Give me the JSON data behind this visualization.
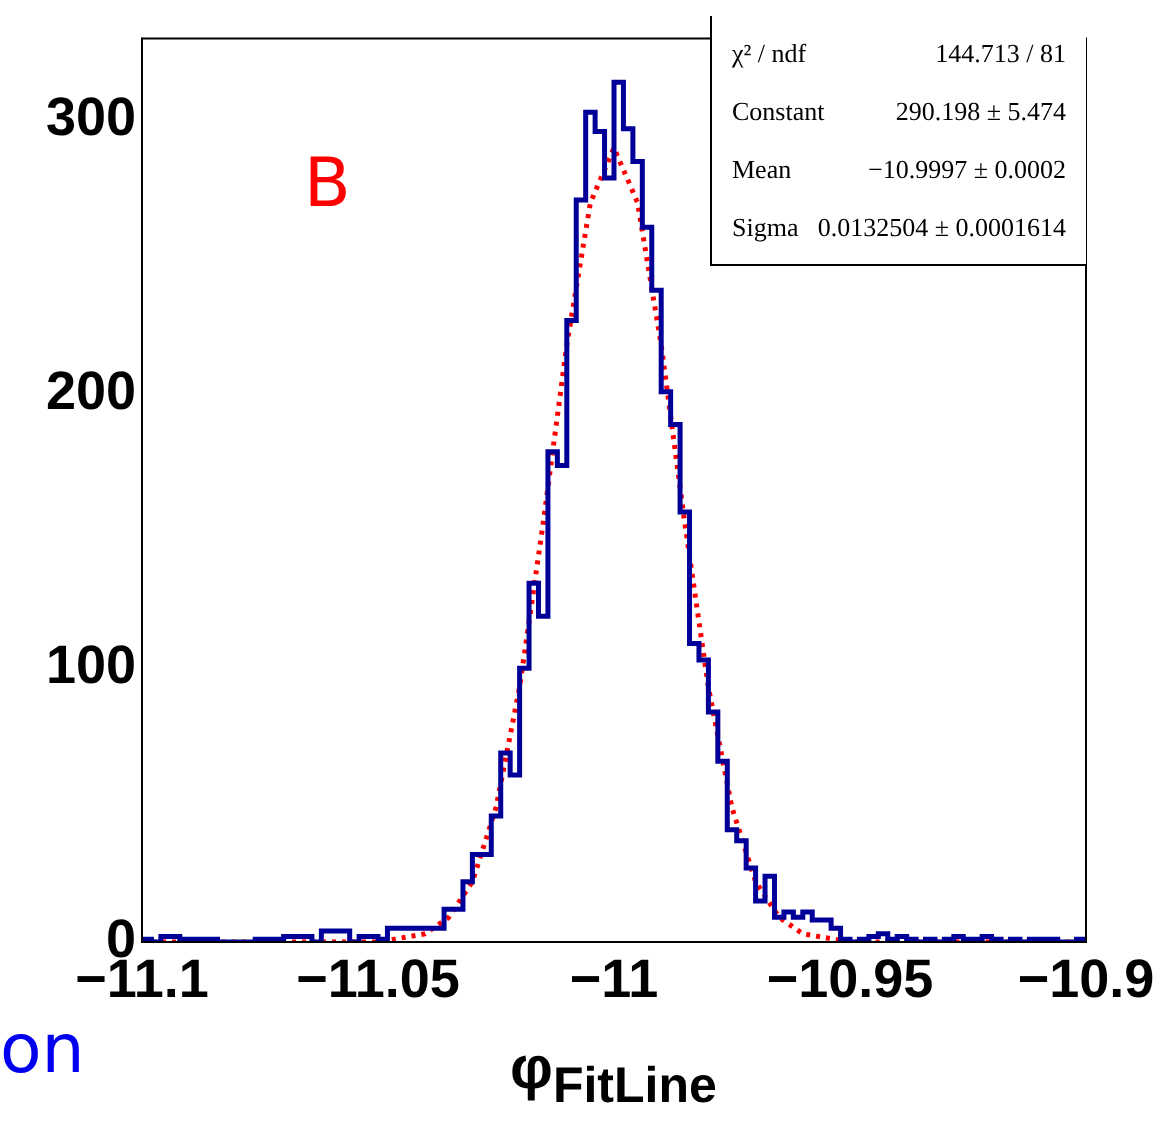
{
  "chart_data": {
    "type": "histogram",
    "xlabel": "φ$_{FitLine}$",
    "bins": [
      -11.1,
      -11.098,
      -11.096,
      -11.094,
      -11.092,
      -11.09,
      -11.088,
      -11.086,
      -11.084,
      -11.082,
      -11.08,
      -11.078,
      -11.076,
      -11.074,
      -11.072,
      -11.07,
      -11.068,
      -11.066,
      -11.064,
      -11.062,
      -11.06,
      -11.058,
      -11.056,
      -11.054,
      -11.052,
      -11.05,
      -11.048,
      -11.046,
      -11.044,
      -11.042,
      -11.04,
      -11.038,
      -11.036,
      -11.034,
      -11.032,
      -11.03,
      -11.028,
      -11.026,
      -11.024,
      -11.022,
      -11.02,
      -11.018,
      -11.016,
      -11.014,
      -11.012,
      -11.01,
      -11.008,
      -11.006,
      -11.004,
      -11.002,
      -11,
      -10.998,
      -10.996,
      -10.994,
      -10.992,
      -10.99,
      -10.988,
      -10.986,
      -10.984,
      -10.982,
      -10.98,
      -10.978,
      -10.976,
      -10.974,
      -10.972,
      -10.97,
      -10.968,
      -10.966,
      -10.964,
      -10.962,
      -10.96,
      -10.958,
      -10.956,
      -10.954,
      -10.952,
      -10.95,
      -10.948,
      -10.946,
      -10.944,
      -10.942,
      -10.94,
      -10.938,
      -10.936,
      -10.934,
      -10.932,
      -10.93,
      -10.928,
      -10.926,
      -10.924,
      -10.922,
      -10.92,
      -10.918,
      -10.916,
      -10.914,
      -10.912,
      -10.91,
      -10.908,
      -10.906,
      -10.904,
      -10.902,
      -10.9
    ],
    "values": [
      1,
      0,
      2,
      2,
      1,
      1,
      1,
      1,
      0,
      0,
      0,
      0,
      1,
      1,
      1,
      2,
      2,
      2,
      0,
      4,
      4,
      4,
      0,
      2,
      2,
      1,
      5,
      5,
      5,
      5,
      5,
      5,
      12,
      12,
      22,
      32,
      32,
      46,
      69,
      61,
      100,
      131,
      119,
      179,
      174,
      227,
      271,
      303,
      296,
      279,
      314,
      297,
      285,
      261,
      238,
      201,
      189,
      157,
      109,
      103,
      84,
      66,
      41,
      37,
      27,
      15,
      24,
      9,
      11,
      9,
      11,
      8,
      8,
      5,
      1,
      0,
      1,
      2,
      3,
      1,
      2,
      1,
      0,
      1,
      0,
      1,
      2,
      1,
      1,
      2,
      1,
      0,
      1,
      0,
      1,
      1,
      1,
      0,
      0,
      1
    ],
    "color": "#000099",
    "series": [
      {
        "type": "line",
        "color": "#ff0000",
        "line_style": "dotted",
        "x": [
          -11.1,
          -11.07,
          -11.06,
          -11.05,
          -11.04,
          -11.035,
          -11.03,
          -11.025,
          -11.02,
          -11.015,
          -11.01,
          -11.005,
          -11,
          -10.995,
          -10.99,
          -10.985,
          -10.98,
          -10.975,
          -10.97,
          -10.965,
          -10.96,
          -10.95,
          -10.94,
          -10.9
        ],
        "values": [
          0,
          0,
          0,
          0,
          3,
          9,
          22,
          49,
          93,
          153,
          218,
          270,
          290,
          270,
          218,
          153,
          93,
          49,
          22,
          9,
          3,
          0,
          0,
          0
        ]
      }
    ],
    "xlim": [
      -11.1,
      -10.9
    ],
    "xticks": [
      -11.1,
      -11.05,
      -11,
      -10.95,
      -10.9
    ],
    "ylim": [
      0,
      330
    ],
    "yticks": [
      0,
      100,
      200,
      300
    ],
    "annotations": [
      "B",
      "χ² / ndf",
      "144.713 / 81",
      "Constant",
      "290.198 ± 5.474",
      "Mean",
      "−10.9997 ± 0.0002",
      "Sigma",
      "0.0132504 ± 0.0001614",
      "on"
    ]
  }
}
